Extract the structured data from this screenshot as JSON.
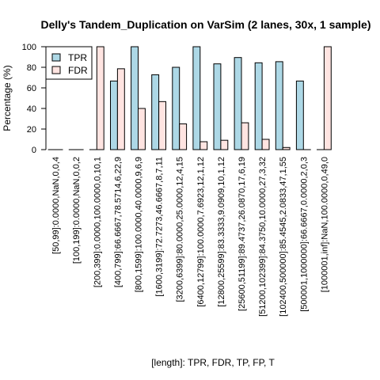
{
  "chart_data": {
    "type": "bar",
    "title": "Delly's Tandem_Duplication on VarSim (2 lanes, 30x, 1 sample)",
    "xlabel": "[length]: TPR, FDR, TP, FP, T",
    "ylabel": "Percentage (%)",
    "ylim": [
      0,
      100
    ],
    "yticks": [
      0,
      20,
      40,
      60,
      80,
      100
    ],
    "grid": false,
    "legend_position": "top-left",
    "categories": [
      "[50,99]:0.0000,NaN,0,0,4",
      "[100,199]:0.0000,NaN,0,0,2",
      "[200,399]:0.0000,100.0000,0,10,1",
      "[400,799]:66.6667,78.5714,6,22,9",
      "[800,1599]:100.0000,40.0000,9,6,9",
      "[1600,3199]:72.7273,46.6667,8,7,11",
      "[3200,6399]:80.0000,25.0000,12,4,15",
      "[6400,12799]:100.0000,7.6923,12,1,12",
      "[12800,25599]:83.3333,9.0909,10,1,12",
      "[25600,51199]:89.4737,26.0870,17,6,19",
      "[51200,102399]:84.3750,10.0000,27,3,32",
      "[102400,500000]:85.4545,2.0833,47,1,55",
      "[500001,1000000]:66.6667,0.0000,2,0,3",
      "[1000001,inf]:NaN,100.0000,0,49,0"
    ],
    "series": [
      {
        "name": "TPR",
        "color": "#add8e6",
        "values": [
          0,
          0,
          0,
          66.6667,
          100,
          72.7273,
          80,
          100,
          83.3333,
          89.4737,
          84.375,
          85.4545,
          66.6667,
          0
        ]
      },
      {
        "name": "FDR",
        "color": "#ffe4e1",
        "values": [
          0,
          0,
          100,
          78.5714,
          40,
          46.6667,
          25,
          7.6923,
          9.0909,
          26.087,
          10,
          2.0833,
          0,
          100
        ]
      }
    ]
  }
}
